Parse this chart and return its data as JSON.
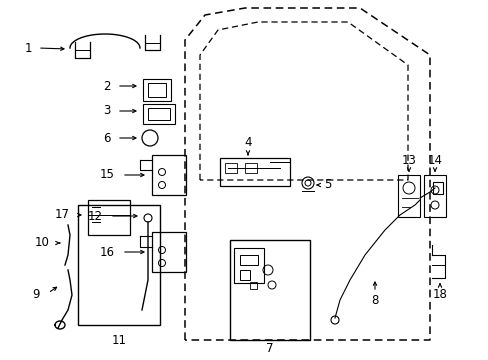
{
  "bg_color": "#ffffff",
  "fig_width": 4.89,
  "fig_height": 3.6,
  "dpi": 100,
  "line_color": "#000000",
  "text_color": "#000000",
  "font_size": 8.5,
  "small_font_size": 7.5
}
